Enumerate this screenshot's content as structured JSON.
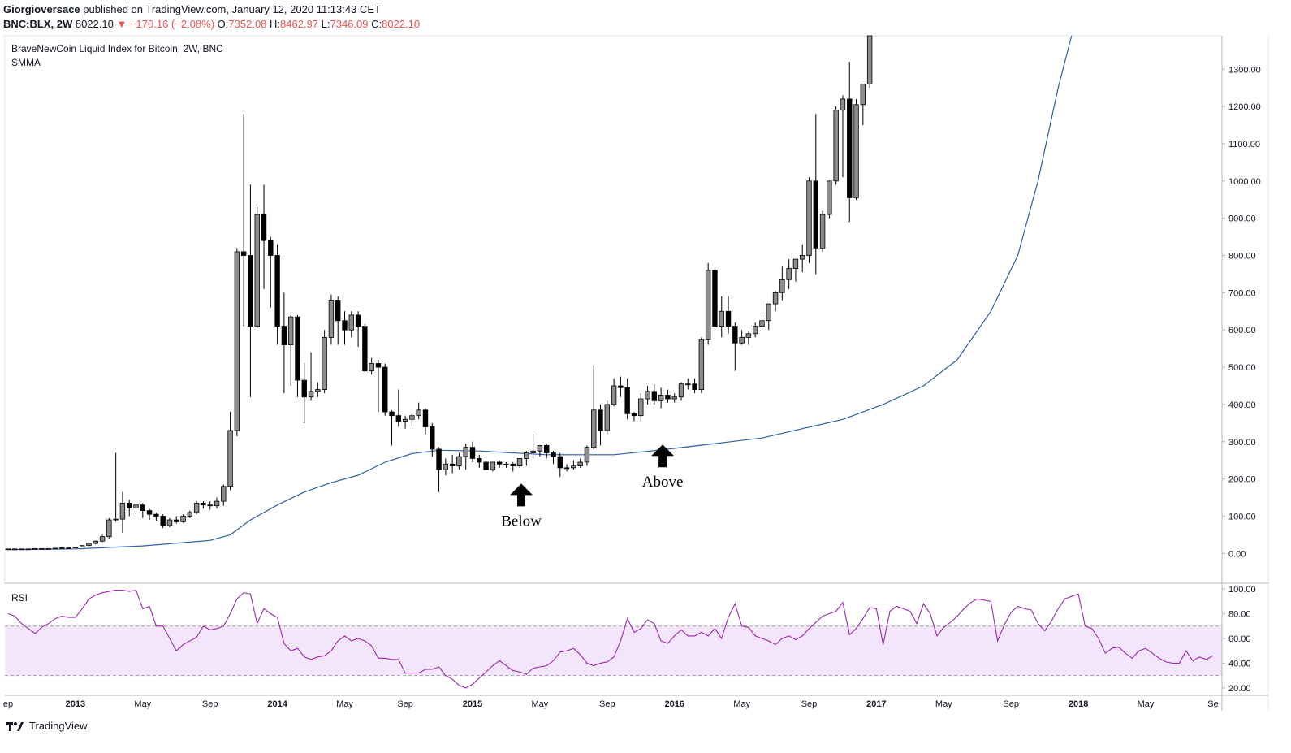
{
  "header": {
    "author": "Giorgioversace",
    "published": "published on TradingView.com, January 12, 2020 11:13:43 CET",
    "symbol": "BNC:BLX, 2W",
    "last": "8022.10",
    "change": "−170.16 (−2.08%)",
    "o_label": "O:",
    "o_val": "7352.08",
    "h_label": "H:",
    "h_val": "8462.97",
    "l_label": "L:",
    "l_val": "7346.09",
    "c_label": "C:",
    "c_val": "8022.10"
  },
  "brand": {
    "name": "TradingView",
    "logo_icon": "tradingview-logo-icon"
  },
  "chart_data": [
    {
      "type": "candlestick",
      "title": "BraveNewCoin Liquid Index for Bitcoin, 2W, BNC",
      "subtitle": "SMMA",
      "ylim": [
        -80,
        1390
      ],
      "y_ticks": [
        0,
        100,
        200,
        300,
        400,
        500,
        600,
        700,
        800,
        900,
        1000,
        1100,
        1200,
        1300
      ],
      "y_tick_labels": [
        "0.00",
        "100.00",
        "200.00",
        "300.00",
        "400.00",
        "500.00",
        "600.00",
        "700.00",
        "800.00",
        "900.00",
        "1000.00",
        "1100.00",
        "1200.00",
        "1300.00"
      ],
      "x_ticks": [
        "ep",
        "2013",
        "May",
        "Sep",
        "2014",
        "May",
        "Sep",
        "2015",
        "May",
        "Sep",
        "2016",
        "May",
        "Sep",
        "2017",
        "May",
        "Sep",
        "2018",
        "May",
        "Se"
      ],
      "x_tick_bold": [
        false,
        true,
        false,
        false,
        true,
        false,
        false,
        true,
        false,
        false,
        true,
        false,
        false,
        true,
        false,
        false,
        true,
        false,
        false
      ],
      "x_tick_index": [
        0,
        10,
        20,
        30,
        40,
        50,
        59,
        69,
        79,
        89,
        99,
        109,
        119,
        129,
        139,
        149,
        159,
        169,
        179
      ],
      "annotations": [
        {
          "text": "Below",
          "icon": "arrow-up-icon",
          "at_index": 76,
          "at_value": 170
        },
        {
          "text": "Above",
          "icon": "arrow-up-icon",
          "at_index": 97,
          "at_value": 275
        }
      ],
      "candles": [
        [
          12,
          12,
          11,
          12
        ],
        [
          12,
          12,
          11,
          12
        ],
        [
          12,
          12,
          11,
          12
        ],
        [
          12,
          12,
          11,
          12
        ],
        [
          12,
          13,
          11,
          13
        ],
        [
          13,
          13,
          12,
          13
        ],
        [
          13,
          13,
          12,
          13
        ],
        [
          13,
          14,
          12,
          14
        ],
        [
          14,
          15,
          13,
          15
        ],
        [
          15,
          15,
          14,
          15
        ],
        [
          15,
          18,
          14,
          17
        ],
        [
          17,
          22,
          16,
          21
        ],
        [
          21,
          28,
          20,
          27
        ],
        [
          27,
          35,
          24,
          33
        ],
        [
          33,
          50,
          30,
          45
        ],
        [
          45,
          95,
          40,
          90
        ],
        [
          90,
          270,
          85,
          92
        ],
        [
          92,
          165,
          55,
          135
        ],
        [
          135,
          145,
          100,
          122
        ],
        [
          122,
          140,
          105,
          130
        ],
        [
          130,
          135,
          95,
          115
        ],
        [
          115,
          120,
          90,
          105
        ],
        [
          105,
          110,
          88,
          100
        ],
        [
          100,
          105,
          68,
          75
        ],
        [
          75,
          95,
          70,
          90
        ],
        [
          90,
          100,
          80,
          85
        ],
        [
          85,
          105,
          82,
          100
        ],
        [
          100,
          115,
          95,
          110
        ],
        [
          110,
          140,
          105,
          135
        ],
        [
          135,
          140,
          120,
          130
        ],
        [
          130,
          140,
          118,
          128
        ],
        [
          128,
          150,
          120,
          140
        ],
        [
          140,
          185,
          128,
          180
        ],
        [
          180,
          380,
          170,
          330
        ],
        [
          330,
          820,
          315,
          810
        ],
        [
          810,
          1180,
          610,
          800
        ],
        [
          800,
          990,
          420,
          610
        ],
        [
          610,
          930,
          605,
          910
        ],
        [
          910,
          990,
          710,
          840
        ],
        [
          840,
          850,
          660,
          800
        ],
        [
          800,
          830,
          560,
          610
        ],
        [
          610,
          700,
          430,
          560
        ],
        [
          560,
          640,
          450,
          635
        ],
        [
          635,
          640,
          420,
          465
        ],
        [
          465,
          510,
          350,
          420
        ],
        [
          420,
          540,
          410,
          435
        ],
        [
          435,
          460,
          420,
          440
        ],
        [
          440,
          600,
          430,
          580
        ],
        [
          580,
          695,
          560,
          680
        ],
        [
          680,
          690,
          560,
          625
        ],
        [
          625,
          650,
          560,
          600
        ],
        [
          600,
          650,
          580,
          640
        ],
        [
          640,
          650,
          555,
          610
        ],
        [
          610,
          615,
          480,
          490
        ],
        [
          490,
          525,
          480,
          510
        ],
        [
          510,
          520,
          380,
          500
        ],
        [
          500,
          510,
          370,
          380
        ],
        [
          380,
          385,
          290,
          370
        ],
        [
          370,
          440,
          340,
          355
        ],
        [
          355,
          370,
          335,
          360
        ],
        [
          360,
          375,
          340,
          370
        ],
        [
          370,
          405,
          360,
          385
        ],
        [
          385,
          390,
          320,
          340
        ],
        [
          340,
          350,
          260,
          280
        ],
        [
          280,
          285,
          165,
          225
        ],
        [
          225,
          255,
          210,
          240
        ],
        [
          240,
          265,
          215,
          235
        ],
        [
          235,
          270,
          225,
          260
        ],
        [
          260,
          295,
          225,
          285
        ],
        [
          285,
          300,
          245,
          255
        ],
        [
          255,
          265,
          230,
          245
        ],
        [
          245,
          250,
          225,
          225
        ],
        [
          225,
          245,
          220,
          245
        ],
        [
          245,
          250,
          230,
          240
        ],
        [
          240,
          245,
          230,
          240
        ],
        [
          240,
          245,
          220,
          235
        ],
        [
          235,
          250,
          230,
          255
        ],
        [
          255,
          275,
          235,
          270
        ],
        [
          270,
          320,
          255,
          275
        ],
        [
          275,
          290,
          260,
          290
        ],
        [
          290,
          295,
          255,
          270
        ],
        [
          270,
          275,
          240,
          260
        ],
        [
          260,
          270,
          205,
          230
        ],
        [
          230,
          240,
          220,
          230
        ],
        [
          230,
          250,
          225,
          235
        ],
        [
          235,
          255,
          230,
          245
        ],
        [
          245,
          290,
          235,
          285
        ],
        [
          285,
          505,
          280,
          385
        ],
        [
          385,
          400,
          290,
          330
        ],
        [
          330,
          410,
          320,
          400
        ],
        [
          400,
          470,
          395,
          450
        ],
        [
          450,
          475,
          420,
          445
        ],
        [
          445,
          470,
          360,
          375
        ],
        [
          375,
          380,
          355,
          370
        ],
        [
          370,
          430,
          355,
          415
        ],
        [
          415,
          450,
          400,
          435
        ],
        [
          435,
          455,
          400,
          410
        ],
        [
          410,
          445,
          390,
          425
        ],
        [
          425,
          440,
          405,
          415
        ],
        [
          415,
          430,
          405,
          420
        ],
        [
          420,
          460,
          410,
          455
        ],
        [
          455,
          470,
          440,
          455
        ],
        [
          455,
          470,
          430,
          440
        ],
        [
          440,
          580,
          430,
          575
        ],
        [
          575,
          780,
          560,
          760
        ],
        [
          760,
          770,
          600,
          610
        ],
        [
          610,
          690,
          580,
          650
        ],
        [
          650,
          690,
          590,
          610
        ],
        [
          610,
          620,
          490,
          565
        ],
        [
          565,
          600,
          560,
          580
        ],
        [
          580,
          595,
          560,
          590
        ],
        [
          590,
          620,
          580,
          610
        ],
        [
          610,
          640,
          600,
          625
        ],
        [
          625,
          665,
          600,
          670
        ],
        [
          670,
          705,
          650,
          700
        ],
        [
          700,
          770,
          680,
          735
        ],
        [
          735,
          790,
          710,
          765
        ],
        [
          765,
          785,
          730,
          790
        ],
        [
          790,
          830,
          755,
          800
        ],
        [
          800,
          1010,
          780,
          1000
        ],
        [
          1000,
          1180,
          750,
          820
        ],
        [
          820,
          920,
          810,
          910
        ],
        [
          910,
          1000,
          900,
          1000
        ],
        [
          1000,
          1200,
          990,
          1190
        ],
        [
          1190,
          1230,
          1010,
          1220
        ],
        [
          1220,
          1320,
          890,
          955
        ],
        [
          955,
          1220,
          950,
          1205
        ],
        [
          1205,
          1260,
          1150,
          1260
        ],
        [
          1260,
          1390,
          1250,
          1390
        ]
      ],
      "smma": [
        [
          0,
          10
        ],
        [
          10,
          12
        ],
        [
          20,
          20
        ],
        [
          30,
          35
        ],
        [
          33,
          50
        ],
        [
          36,
          90
        ],
        [
          40,
          130
        ],
        [
          44,
          165
        ],
        [
          48,
          190
        ],
        [
          52,
          210
        ],
        [
          56,
          245
        ],
        [
          60,
          268
        ],
        [
          64,
          277
        ],
        [
          70,
          275
        ],
        [
          80,
          265
        ],
        [
          90,
          265
        ],
        [
          97,
          278
        ],
        [
          105,
          295
        ],
        [
          112,
          310
        ],
        [
          118,
          335
        ],
        [
          124,
          360
        ],
        [
          130,
          400
        ],
        [
          136,
          450
        ],
        [
          141,
          520
        ],
        [
          146,
          650
        ],
        [
          150,
          800
        ],
        [
          153,
          1000
        ],
        [
          156,
          1250
        ],
        [
          158,
          1390
        ]
      ]
    },
    {
      "type": "line",
      "title": "RSI",
      "ylim": [
        14,
        104
      ],
      "y_ticks": [
        20,
        40,
        60,
        80,
        100
      ],
      "y_tick_labels": [
        "20.00",
        "40.00",
        "60.00",
        "80.00",
        "100.00"
      ],
      "band": [
        30,
        70
      ],
      "values": [
        80,
        78,
        72,
        68,
        64,
        69,
        72,
        76,
        78,
        77,
        77,
        84,
        92,
        95,
        97,
        98,
        99,
        99,
        98,
        99,
        84,
        86,
        70,
        70,
        60,
        50,
        55,
        58,
        61,
        70,
        67,
        68,
        70,
        80,
        92,
        97,
        96,
        72,
        84,
        80,
        77,
        56,
        50,
        52,
        45,
        43,
        45,
        46,
        50,
        58,
        62,
        58,
        60,
        58,
        54,
        44,
        44,
        43,
        43,
        32,
        32,
        32,
        35,
        35,
        37,
        30,
        27,
        22,
        20,
        23,
        28,
        33,
        38,
        42,
        38,
        34,
        33,
        31,
        36,
        37,
        38,
        42,
        49,
        50,
        52,
        47,
        40,
        38,
        40,
        41,
        45,
        58,
        76,
        65,
        68,
        75,
        72,
        58,
        56,
        62,
        67,
        62,
        62,
        65,
        62,
        68,
        60,
        77,
        88,
        70,
        69,
        62,
        60,
        58,
        55,
        60,
        62,
        59,
        62,
        68,
        73,
        78,
        80,
        82,
        89,
        63,
        68,
        76,
        85,
        84,
        55,
        82,
        86,
        84,
        82,
        72,
        88,
        80,
        62,
        69,
        73,
        78,
        84,
        89,
        92,
        91,
        90,
        58,
        71,
        81,
        86,
        84,
        83,
        72,
        66,
        74,
        84,
        92,
        94,
        96,
        70,
        68,
        60,
        48,
        52,
        53,
        48,
        44,
        50,
        52,
        48,
        44,
        41,
        40,
        40,
        50,
        42,
        45,
        43,
        46
      ]
    }
  ]
}
